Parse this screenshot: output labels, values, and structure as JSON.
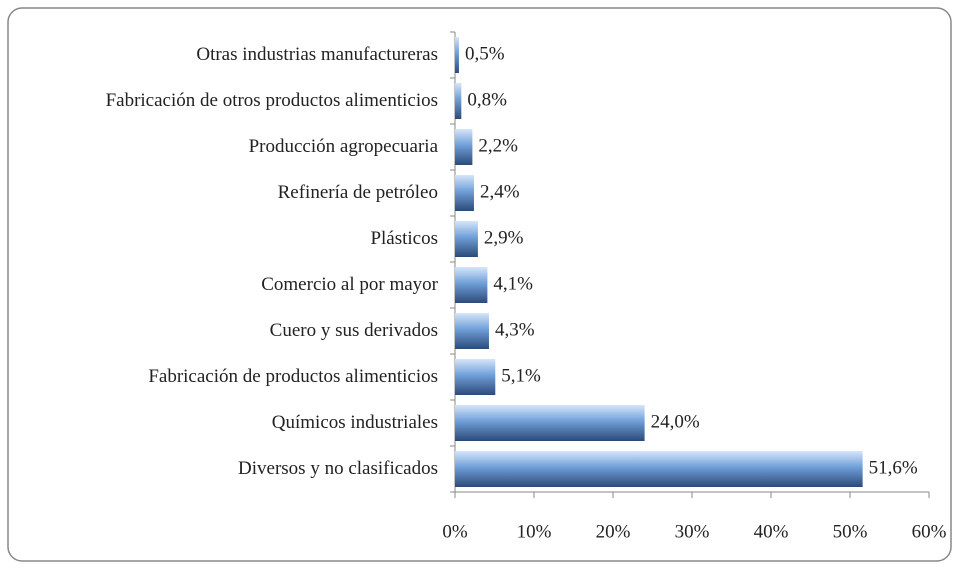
{
  "chart_data": {
    "type": "bar",
    "orientation": "horizontal",
    "categories": [
      "Otras industrias manufactureras",
      "Fabricación de otros productos alimenticios",
      "Producción agropecuaria",
      "Refinería de petróleo",
      "Plásticos",
      "Comercio al por mayor",
      "Cuero y sus derivados",
      "Fabricación de productos alimenticios",
      "Químicos industriales",
      "Diversos y no clasificados"
    ],
    "values": [
      0.5,
      0.8,
      2.2,
      2.4,
      2.9,
      4.1,
      4.3,
      5.1,
      24.0,
      51.6
    ],
    "value_labels": [
      "0,5%",
      "0,8%",
      "2,2%",
      "2,4%",
      "2,9%",
      "4,1%",
      "4,3%",
      "5,1%",
      "24,0%",
      "51,6%"
    ],
    "color": "#6f9fd8",
    "xlim": [
      0,
      60
    ],
    "xticks": [
      {
        "value": 0,
        "label": "0%"
      },
      {
        "value": 10,
        "label": "10%"
      },
      {
        "value": 20,
        "label": "20%"
      },
      {
        "value": 30,
        "label": "30%"
      },
      {
        "value": 40,
        "label": "40%"
      },
      {
        "value": 50,
        "label": "50%"
      },
      {
        "value": 60,
        "label": "60%"
      }
    ],
    "grid": false
  }
}
